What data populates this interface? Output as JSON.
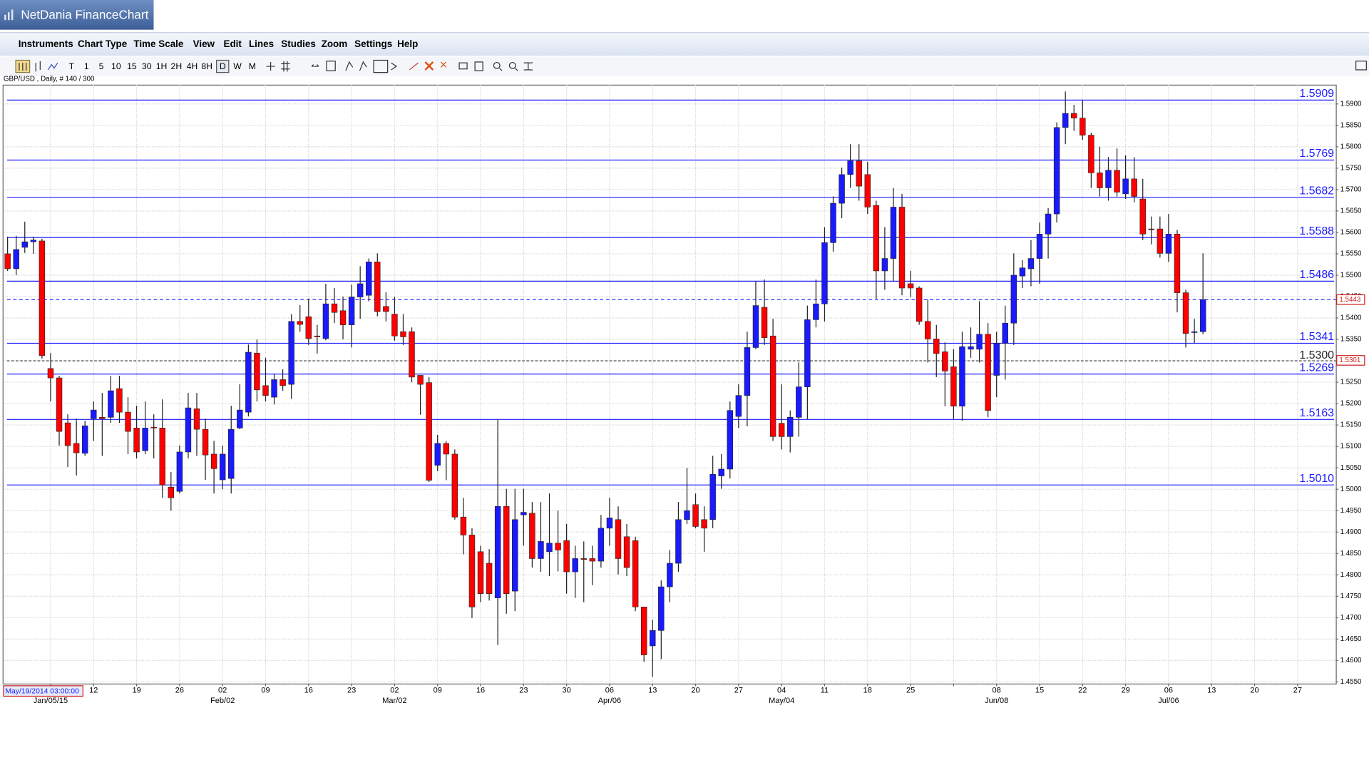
{
  "app_title": "NetDania FinanceChart",
  "menu": [
    "Instruments",
    "Chart Type",
    "Time Scale",
    "View",
    "Edit",
    "Lines",
    "Studies",
    "Zoom",
    "Settings",
    "Help"
  ],
  "toolbar": [
    "T",
    "1",
    "5",
    "10",
    "15",
    "30",
    "1H",
    "2H",
    "4H",
    "8H",
    "D",
    "W",
    "M"
  ],
  "chart_data": {
    "type": "candlestick",
    "title": "GBP/USD , Daily, # 140 / 300",
    "up_color": "#1a1aff",
    "down_color": "#ff0000",
    "ylim": [
      1.4546,
      1.5945
    ],
    "yticks": [
      {
        "value": 1.455,
        "label": "1.4550"
      },
      {
        "value": 1.46,
        "label": "1.4600"
      },
      {
        "value": 1.465,
        "label": "1.4650"
      },
      {
        "value": 1.47,
        "label": "1.4700"
      },
      {
        "value": 1.475,
        "label": "1.4750"
      },
      {
        "value": 1.48,
        "label": "1.4800"
      },
      {
        "value": 1.485,
        "label": "1.4850"
      },
      {
        "value": 1.49,
        "label": "1.4900"
      },
      {
        "value": 1.495,
        "label": "1.4950"
      },
      {
        "value": 1.5,
        "label": "1.5000"
      },
      {
        "value": 1.505,
        "label": "1.5050"
      },
      {
        "value": 1.51,
        "label": "1.5100"
      },
      {
        "value": 1.515,
        "label": "1.5150"
      },
      {
        "value": 1.52,
        "label": "1.5200"
      },
      {
        "value": 1.525,
        "label": "1.5250"
      },
      {
        "value": 1.53,
        "label": "1.5300"
      },
      {
        "value": 1.535,
        "label": "1.5350"
      },
      {
        "value": 1.54,
        "label": "1.5400"
      },
      {
        "value": 1.545,
        "label": "1.5450"
      },
      {
        "value": 1.55,
        "label": "1.5500"
      },
      {
        "value": 1.555,
        "label": "1.5550"
      },
      {
        "value": 1.56,
        "label": "1.5600"
      },
      {
        "value": 1.565,
        "label": "1.5650"
      },
      {
        "value": 1.57,
        "label": "1.5700"
      },
      {
        "value": 1.575,
        "label": "1.5750"
      },
      {
        "value": 1.58,
        "label": "1.5800"
      },
      {
        "value": 1.585,
        "label": "1.5850"
      },
      {
        "value": 1.59,
        "label": "1.5900"
      }
    ],
    "grid": true,
    "weeks": [
      null,
      "12",
      "19",
      "26",
      "02",
      "09",
      "16",
      "23",
      "02",
      "09",
      "16",
      "23",
      "30",
      "06",
      "13",
      "20",
      "27",
      "04",
      "11",
      "18",
      "25",
      null,
      "08",
      "15",
      "22",
      "29",
      "06",
      "13",
      "20",
      "27"
    ],
    "months": [
      "Jan/05/15",
      null,
      null,
      null,
      "Feb/02",
      null,
      null,
      null,
      "Mar/02",
      null,
      null,
      null,
      null,
      "Apr/06",
      null,
      null,
      null,
      "May/04",
      null,
      null,
      null,
      null,
      "Jun/08",
      null,
      null,
      null,
      "Jul/06",
      null,
      null,
      null
    ],
    "levels": [
      1.5909,
      1.5769,
      1.5682,
      1.5588,
      1.5486,
      1.5341,
      1.5269,
      1.5163,
      {
        "value": 1.501,
        "label": "1.5010"
      }
    ],
    "level_color": "#1a1aff",
    "ref_line": {
      "value": 1.53,
      "label": "1.5300"
    },
    "ref_axis_value": 1.5301,
    "last_price": 1.5443,
    "timestamp": "May/19/2014 03:00:00",
    "ohlc": [
      [
        1.555,
        1.559,
        1.551,
        1.5515
      ],
      [
        1.5515,
        1.5592,
        1.55,
        1.556
      ],
      [
        1.5565,
        1.5625,
        1.5552,
        1.5578
      ],
      [
        1.5578,
        1.559,
        1.555,
        1.5582
      ],
      [
        1.558,
        1.5585,
        1.5305,
        1.5312
      ],
      [
        1.5282,
        1.5318,
        1.5205,
        1.526
      ],
      [
        1.526,
        1.5265,
        1.5102,
        1.5135
      ],
      [
        1.5155,
        1.5175,
        1.5052,
        1.5102
      ],
      [
        1.5107,
        1.5165,
        1.5032,
        1.5085
      ],
      [
        1.5084,
        1.516,
        1.5078,
        1.5148
      ],
      [
        1.5165,
        1.5205,
        1.5113,
        1.5185
      ],
      [
        1.5168,
        1.5225,
        1.5078,
        1.5165
      ],
      [
        1.5168,
        1.5265,
        1.5155,
        1.523
      ],
      [
        1.5235,
        1.5265,
        1.5155,
        1.518
      ],
      [
        1.518,
        1.5215,
        1.5082,
        1.5135
      ],
      [
        1.5143,
        1.5195,
        1.5072,
        1.5087
      ],
      [
        1.509,
        1.5205,
        1.5082,
        1.5143
      ],
      [
        1.5145,
        1.5175,
        1.5072,
        1.5143
      ],
      [
        1.5143,
        1.521,
        1.498,
        1.501
      ],
      [
        1.5005,
        1.504,
        1.495,
        1.498
      ],
      [
        1.4995,
        1.5102,
        1.499,
        1.5087
      ],
      [
        1.5087,
        1.5225,
        1.5072,
        1.519
      ],
      [
        1.5188,
        1.5225,
        1.5078,
        1.514
      ],
      [
        1.514,
        1.5165,
        1.5022,
        1.508
      ],
      [
        1.5082,
        1.5113,
        1.499,
        1.5048
      ],
      [
        1.5022,
        1.5102,
        1.5,
        1.5082
      ],
      [
        1.5025,
        1.5195,
        1.499,
        1.514
      ],
      [
        1.5143,
        1.5245,
        1.514,
        1.5185
      ],
      [
        1.518,
        1.5338,
        1.517,
        1.532
      ],
      [
        1.5318,
        1.535,
        1.5205,
        1.5232
      ],
      [
        1.5242,
        1.5307,
        1.5205,
        1.5219
      ],
      [
        1.5215,
        1.527,
        1.5198,
        1.5256
      ],
      [
        1.5256,
        1.528,
        1.523,
        1.5242
      ],
      [
        1.5245,
        1.5409,
        1.5211,
        1.5392
      ],
      [
        1.5392,
        1.543,
        1.5368,
        1.5385
      ],
      [
        1.5403,
        1.5445,
        1.5337,
        1.5352
      ],
      [
        1.5358,
        1.5384,
        1.5317,
        1.5356
      ],
      [
        1.5352,
        1.548,
        1.5348,
        1.5433
      ],
      [
        1.5433,
        1.547,
        1.5388,
        1.5413
      ],
      [
        1.5417,
        1.545,
        1.535,
        1.5384
      ],
      [
        1.5384,
        1.5478,
        1.5331,
        1.5449
      ],
      [
        1.5449,
        1.5521,
        1.5398,
        1.548
      ],
      [
        1.5453,
        1.5539,
        1.5439,
        1.5531
      ],
      [
        1.5531,
        1.5551,
        1.5404,
        1.5415
      ],
      [
        1.5427,
        1.546,
        1.5392,
        1.5415
      ],
      [
        1.5409,
        1.5449,
        1.5347,
        1.5358
      ],
      [
        1.5368,
        1.5409,
        1.5337,
        1.5356
      ],
      [
        1.5368,
        1.5378,
        1.525,
        1.5262
      ],
      [
        1.5266,
        1.5266,
        1.5174,
        1.5245
      ],
      [
        1.5249,
        1.5262,
        1.5017,
        1.5021
      ],
      [
        1.5056,
        1.5127,
        1.5042,
        1.5107
      ],
      [
        1.5107,
        1.5113,
        1.5021,
        1.5082
      ],
      [
        1.5082,
        1.5093,
        1.4929,
        1.4935
      ],
      [
        1.4935,
        1.498,
        1.4848,
        1.4893
      ],
      [
        1.4893,
        1.4909,
        1.4699,
        1.4725
      ],
      [
        1.4854,
        1.4868,
        1.4736,
        1.4756
      ],
      [
        1.4827,
        1.486,
        1.474,
        1.4756
      ],
      [
        1.4746,
        1.5164,
        1.4636,
        1.496
      ],
      [
        1.496,
        1.5001,
        1.4709,
        1.4756
      ],
      [
        1.4762,
        1.5001,
        1.4715,
        1.4929
      ],
      [
        1.494,
        1.5001,
        1.4868,
        1.4946
      ],
      [
        1.4944,
        1.497,
        1.4817,
        1.4838
      ],
      [
        1.4838,
        1.497,
        1.4807,
        1.4878
      ],
      [
        1.4854,
        1.499,
        1.4797,
        1.4874
      ],
      [
        1.4874,
        1.495,
        1.4808,
        1.4858
      ],
      [
        1.488,
        1.4919,
        1.4756,
        1.4807
      ],
      [
        1.4807,
        1.4868,
        1.4746,
        1.4838
      ],
      [
        1.4838,
        1.4878,
        1.4736,
        1.4836
      ],
      [
        1.4838,
        1.4868,
        1.4776,
        1.4832
      ],
      [
        1.4832,
        1.494,
        1.4817,
        1.4909
      ],
      [
        1.4909,
        1.498,
        1.4868,
        1.4933
      ],
      [
        1.4929,
        1.496,
        1.4801,
        1.4838
      ],
      [
        1.4889,
        1.4919,
        1.4797,
        1.4817
      ],
      [
        1.488,
        1.4889,
        1.4715,
        1.4725
      ],
      [
        1.4725,
        1.4725,
        1.4597,
        1.4613
      ],
      [
        1.4634,
        1.4695,
        1.4562,
        1.467
      ],
      [
        1.467,
        1.4787,
        1.4603,
        1.4772
      ],
      [
        1.4772,
        1.4858,
        1.4736,
        1.4827
      ],
      [
        1.4827,
        1.497,
        1.4807,
        1.4929
      ],
      [
        1.4929,
        1.505,
        1.4919,
        1.495
      ],
      [
        1.4964,
        1.499,
        1.4909,
        1.4913
      ],
      [
        1.4929,
        1.496,
        1.4854,
        1.4909
      ],
      [
        1.4929,
        1.5078,
        1.4909,
        1.5035
      ],
      [
        1.5031,
        1.5082,
        1.5001,
        1.5047
      ],
      [
        1.5047,
        1.5205,
        1.5025,
        1.5184
      ],
      [
        1.517,
        1.5245,
        1.5143,
        1.5219
      ],
      [
        1.5219,
        1.5368,
        1.5147,
        1.5331
      ],
      [
        1.5331,
        1.5486,
        1.5327,
        1.5429
      ],
      [
        1.5425,
        1.549,
        1.5337,
        1.5354
      ],
      [
        1.5358,
        1.5398,
        1.5113,
        1.5123
      ],
      [
        1.5154,
        1.5245,
        1.5093,
        1.5123
      ],
      [
        1.5123,
        1.5184,
        1.5086,
        1.5168
      ],
      [
        1.5168,
        1.5296,
        1.5123,
        1.5239
      ],
      [
        1.5239,
        1.5429,
        1.5164,
        1.5396
      ],
      [
        1.5396,
        1.549,
        1.5378,
        1.5433
      ],
      [
        1.5433,
        1.5612,
        1.5392,
        1.5576
      ],
      [
        1.5576,
        1.5684,
        1.5555,
        1.5668
      ],
      [
        1.5668,
        1.5751,
        1.5633,
        1.5735
      ],
      [
        1.5735,
        1.5806,
        1.5704,
        1.5767
      ],
      [
        1.5767,
        1.5806,
        1.5674,
        1.5708
      ],
      [
        1.5735,
        1.5765,
        1.5643,
        1.5659
      ],
      [
        1.5663,
        1.5674,
        1.5445,
        1.551
      ],
      [
        1.551,
        1.5612,
        1.5466,
        1.5539
      ],
      [
        1.5539,
        1.5704,
        1.5486,
        1.5659
      ],
      [
        1.5659,
        1.569,
        1.5453,
        1.547
      ],
      [
        1.548,
        1.551,
        1.5449,
        1.547
      ],
      [
        1.547,
        1.5474,
        1.5384,
        1.5392
      ],
      [
        1.5392,
        1.5443,
        1.5296,
        1.5351
      ],
      [
        1.5351,
        1.5384,
        1.5262,
        1.5317
      ],
      [
        1.5321,
        1.5343,
        1.5194,
        1.5276
      ],
      [
        1.5286,
        1.5327,
        1.5164,
        1.5194
      ],
      [
        1.5194,
        1.5368,
        1.516,
        1.5333
      ],
      [
        1.5327,
        1.5378,
        1.5307,
        1.5333
      ],
      [
        1.5327,
        1.5439,
        1.5296,
        1.5362
      ],
      [
        1.5362,
        1.5388,
        1.5168,
        1.5184
      ],
      [
        1.5266,
        1.5368,
        1.5215,
        1.5341
      ],
      [
        1.5341,
        1.5429,
        1.5256,
        1.5388
      ],
      [
        1.5388,
        1.5551,
        1.5337,
        1.55
      ],
      [
        1.5498,
        1.5535,
        1.547,
        1.5517
      ],
      [
        1.5515,
        1.5582,
        1.5474,
        1.5539
      ],
      [
        1.5539,
        1.5623,
        1.548,
        1.5596
      ],
      [
        1.5596,
        1.5657,
        1.5539,
        1.5643
      ],
      [
        1.5643,
        1.5857,
        1.5623,
        1.5845
      ],
      [
        1.5845,
        1.5929,
        1.5806,
        1.5878
      ],
      [
        1.5878,
        1.5898,
        1.5837,
        1.5867
      ],
      [
        1.5867,
        1.5908,
        1.5816,
        1.5827
      ],
      [
        1.5827,
        1.5833,
        1.5704,
        1.5739
      ],
      [
        1.5739,
        1.58,
        1.5684,
        1.5704
      ],
      [
        1.5704,
        1.5776,
        1.5674,
        1.5745
      ],
      [
        1.5745,
        1.5796,
        1.5684,
        1.5694
      ],
      [
        1.569,
        1.578,
        1.5678,
        1.5725
      ],
      [
        1.5725,
        1.5776,
        1.567,
        1.5684
      ],
      [
        1.5678,
        1.5725,
        1.5582,
        1.5596
      ],
      [
        1.5608,
        1.5637,
        1.5572,
        1.5606
      ],
      [
        1.5608,
        1.5637,
        1.5541,
        1.5551
      ],
      [
        1.5551,
        1.5643,
        1.5531,
        1.5596
      ],
      [
        1.5596,
        1.5606,
        1.5413,
        1.5459
      ],
      [
        1.5459,
        1.5466,
        1.5331,
        1.5364
      ],
      [
        1.5366,
        1.5398,
        1.5341,
        1.5368
      ],
      [
        1.5368,
        1.5551,
        1.5362,
        1.5443
      ]
    ]
  }
}
